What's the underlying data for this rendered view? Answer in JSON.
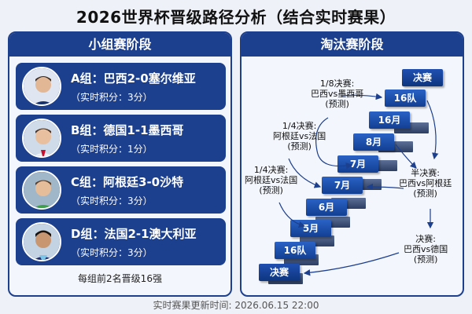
{
  "page_title": "2026世界杯晋级路径分析（结合实时赛果）",
  "group_stage": {
    "header": "小组赛阶段",
    "groups": [
      {
        "result": "A组：巴西2-0塞尔维亚",
        "points": "（实时积分：3分）"
      },
      {
        "result": "B组：德国1-1墨西哥",
        "points": "（实时积分：1分）"
      },
      {
        "result": "C组：阿根廷3-0沙特",
        "points": "（实时积分：3分）"
      },
      {
        "result": "D组：法国2-1澳大利亚",
        "points": "（实时积分：3分）"
      }
    ],
    "note": "每组前2名晋级16强"
  },
  "knockout": {
    "header": "淘汰赛阶段",
    "steps": [
      "决赛",
      "16队",
      "16月",
      "8月",
      "7月",
      "7月",
      "6月",
      "5月",
      "16队",
      "决赛"
    ],
    "annotations": {
      "r16_line1": "1/8决赛:",
      "r16_line2": "巴西vs墨西哥",
      "r16_line3": "(预测)",
      "qf1_line1": "1/4决赛:",
      "qf1_line2": "阿根廷vs法国",
      "qf1_line3": "(预测)",
      "qf2_line1": "1/4决赛:",
      "qf2_line2": "阿根廷vs法国",
      "qf2_line3": "(预测)",
      "sf_line1": "半决赛:",
      "sf_line2": "巴西vs阿根廷",
      "sf_line3": "(预测)",
      "final_line1": "决赛:",
      "final_line2": "巴西vs德国",
      "final_line3": "(预测)"
    }
  },
  "footer": "实时赛果更新时间: 2026.06.15 22:00",
  "colors": {
    "primary": "#1c3f8e",
    "accent": "#2a62c5",
    "background": "#eef1f7"
  }
}
